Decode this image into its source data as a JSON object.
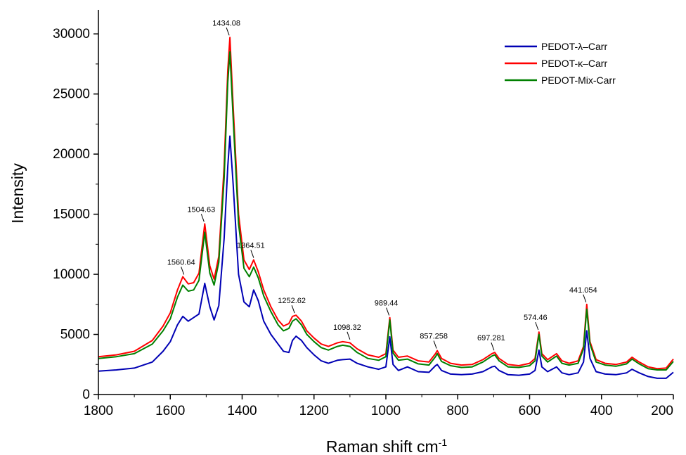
{
  "chart_data": {
    "type": "line",
    "title": "",
    "xlabel": "Raman shift cm",
    "xlabel_sup": "-1",
    "ylabel": "Intensity",
    "xlim": [
      1800,
      200
    ],
    "ylim": [
      0,
      32000
    ],
    "x_ticks": [
      1800,
      1600,
      1400,
      1200,
      1000,
      800,
      600,
      400,
      200
    ],
    "y_ticks": [
      0,
      5000,
      10000,
      15000,
      20000,
      25000,
      30000
    ],
    "grid": false,
    "legend_position": "top-right",
    "series": [
      {
        "name": "PEDOT-λ–Carr",
        "color": "#0000b4",
        "points": [
          [
            1800,
            1950
          ],
          [
            1750,
            2050
          ],
          [
            1700,
            2200
          ],
          [
            1650,
            2700
          ],
          [
            1620,
            3600
          ],
          [
            1600,
            4400
          ],
          [
            1580,
            5800
          ],
          [
            1565,
            6500
          ],
          [
            1550,
            6100
          ],
          [
            1535,
            6400
          ],
          [
            1520,
            6700
          ],
          [
            1504,
            9250
          ],
          [
            1490,
            7300
          ],
          [
            1478,
            6200
          ],
          [
            1465,
            7400
          ],
          [
            1450,
            13000
          ],
          [
            1440,
            19000
          ],
          [
            1434,
            21500
          ],
          [
            1425,
            17500
          ],
          [
            1410,
            10000
          ],
          [
            1395,
            7700
          ],
          [
            1380,
            7300
          ],
          [
            1368,
            8700
          ],
          [
            1355,
            7800
          ],
          [
            1340,
            6100
          ],
          [
            1320,
            5000
          ],
          [
            1300,
            4200
          ],
          [
            1285,
            3600
          ],
          [
            1270,
            3500
          ],
          [
            1260,
            4500
          ],
          [
            1250,
            4850
          ],
          [
            1235,
            4500
          ],
          [
            1220,
            3900
          ],
          [
            1200,
            3300
          ],
          [
            1180,
            2800
          ],
          [
            1160,
            2600
          ],
          [
            1135,
            2850
          ],
          [
            1120,
            2900
          ],
          [
            1100,
            2950
          ],
          [
            1080,
            2600
          ],
          [
            1050,
            2300
          ],
          [
            1020,
            2100
          ],
          [
            1000,
            2300
          ],
          [
            989,
            4800
          ],
          [
            980,
            2500
          ],
          [
            965,
            2000
          ],
          [
            940,
            2300
          ],
          [
            910,
            1900
          ],
          [
            880,
            1850
          ],
          [
            862,
            2400
          ],
          [
            857,
            2500
          ],
          [
            845,
            2000
          ],
          [
            820,
            1700
          ],
          [
            790,
            1650
          ],
          [
            760,
            1700
          ],
          [
            730,
            1900
          ],
          [
            705,
            2300
          ],
          [
            697,
            2350
          ],
          [
            685,
            2000
          ],
          [
            660,
            1650
          ],
          [
            630,
            1600
          ],
          [
            600,
            1700
          ],
          [
            585,
            2000
          ],
          [
            574,
            3700
          ],
          [
            566,
            2300
          ],
          [
            550,
            1900
          ],
          [
            525,
            2300
          ],
          [
            510,
            1800
          ],
          [
            490,
            1650
          ],
          [
            465,
            1800
          ],
          [
            450,
            2700
          ],
          [
            441,
            5300
          ],
          [
            432,
            3000
          ],
          [
            415,
            1900
          ],
          [
            390,
            1700
          ],
          [
            360,
            1650
          ],
          [
            330,
            1800
          ],
          [
            315,
            2100
          ],
          [
            295,
            1800
          ],
          [
            270,
            1500
          ],
          [
            245,
            1350
          ],
          [
            220,
            1350
          ],
          [
            200,
            1850
          ]
        ]
      },
      {
        "name": "PEDOT-κ–Carr",
        "color": "#ff0000",
        "points": [
          [
            1800,
            3150
          ],
          [
            1750,
            3300
          ],
          [
            1700,
            3600
          ],
          [
            1650,
            4500
          ],
          [
            1620,
            5700
          ],
          [
            1600,
            6800
          ],
          [
            1580,
            8700
          ],
          [
            1565,
            9800
          ],
          [
            1550,
            9200
          ],
          [
            1535,
            9300
          ],
          [
            1520,
            10100
          ],
          [
            1504,
            14200
          ],
          [
            1490,
            10700
          ],
          [
            1478,
            9600
          ],
          [
            1465,
            11500
          ],
          [
            1450,
            19000
          ],
          [
            1440,
            27000
          ],
          [
            1434,
            29700
          ],
          [
            1425,
            24000
          ],
          [
            1410,
            15000
          ],
          [
            1395,
            11200
          ],
          [
            1380,
            10400
          ],
          [
            1368,
            11200
          ],
          [
            1355,
            10200
          ],
          [
            1340,
            8700
          ],
          [
            1320,
            7300
          ],
          [
            1300,
            6200
          ],
          [
            1285,
            5700
          ],
          [
            1270,
            5900
          ],
          [
            1260,
            6500
          ],
          [
            1250,
            6600
          ],
          [
            1235,
            6100
          ],
          [
            1220,
            5300
          ],
          [
            1200,
            4700
          ],
          [
            1180,
            4200
          ],
          [
            1160,
            4000
          ],
          [
            1135,
            4300
          ],
          [
            1120,
            4400
          ],
          [
            1100,
            4300
          ],
          [
            1080,
            3800
          ],
          [
            1050,
            3300
          ],
          [
            1020,
            3100
          ],
          [
            1000,
            3400
          ],
          [
            989,
            6400
          ],
          [
            980,
            3700
          ],
          [
            965,
            3100
          ],
          [
            940,
            3200
          ],
          [
            910,
            2800
          ],
          [
            880,
            2700
          ],
          [
            862,
            3400
          ],
          [
            857,
            3650
          ],
          [
            845,
            3000
          ],
          [
            820,
            2600
          ],
          [
            790,
            2450
          ],
          [
            760,
            2500
          ],
          [
            730,
            2900
          ],
          [
            705,
            3400
          ],
          [
            697,
            3500
          ],
          [
            685,
            3000
          ],
          [
            660,
            2500
          ],
          [
            630,
            2400
          ],
          [
            600,
            2600
          ],
          [
            585,
            3000
          ],
          [
            574,
            5200
          ],
          [
            566,
            3400
          ],
          [
            550,
            2900
          ],
          [
            525,
            3400
          ],
          [
            510,
            2800
          ],
          [
            490,
            2600
          ],
          [
            465,
            2800
          ],
          [
            450,
            4000
          ],
          [
            441,
            7500
          ],
          [
            432,
            4400
          ],
          [
            415,
            2900
          ],
          [
            390,
            2600
          ],
          [
            360,
            2500
          ],
          [
            330,
            2700
          ],
          [
            315,
            3100
          ],
          [
            295,
            2700
          ],
          [
            270,
            2300
          ],
          [
            245,
            2150
          ],
          [
            220,
            2200
          ],
          [
            200,
            2950
          ]
        ]
      },
      {
        "name": "PEDOT-Mix-Carr",
        "color": "#008000",
        "points": [
          [
            1800,
            3000
          ],
          [
            1750,
            3150
          ],
          [
            1700,
            3400
          ],
          [
            1650,
            4200
          ],
          [
            1620,
            5300
          ],
          [
            1600,
            6300
          ],
          [
            1580,
            8100
          ],
          [
            1565,
            9100
          ],
          [
            1550,
            8600
          ],
          [
            1535,
            8700
          ],
          [
            1520,
            9500
          ],
          [
            1504,
            13500
          ],
          [
            1490,
            10100
          ],
          [
            1478,
            9100
          ],
          [
            1465,
            11000
          ],
          [
            1450,
            18000
          ],
          [
            1440,
            26000
          ],
          [
            1434,
            28500
          ],
          [
            1425,
            23000
          ],
          [
            1410,
            14200
          ],
          [
            1395,
            10500
          ],
          [
            1380,
            9800
          ],
          [
            1368,
            10600
          ],
          [
            1355,
            9700
          ],
          [
            1340,
            8200
          ],
          [
            1320,
            6900
          ],
          [
            1300,
            5800
          ],
          [
            1285,
            5300
          ],
          [
            1270,
            5500
          ],
          [
            1260,
            6100
          ],
          [
            1250,
            6300
          ],
          [
            1235,
            5800
          ],
          [
            1220,
            5000
          ],
          [
            1200,
            4400
          ],
          [
            1180,
            3900
          ],
          [
            1160,
            3700
          ],
          [
            1135,
            4000
          ],
          [
            1120,
            4100
          ],
          [
            1100,
            4000
          ],
          [
            1080,
            3500
          ],
          [
            1050,
            3000
          ],
          [
            1020,
            2850
          ],
          [
            1000,
            3150
          ],
          [
            989,
            6200
          ],
          [
            980,
            3450
          ],
          [
            965,
            2850
          ],
          [
            940,
            2950
          ],
          [
            910,
            2550
          ],
          [
            880,
            2450
          ],
          [
            862,
            3150
          ],
          [
            857,
            3400
          ],
          [
            845,
            2750
          ],
          [
            820,
            2400
          ],
          [
            790,
            2250
          ],
          [
            760,
            2300
          ],
          [
            730,
            2700
          ],
          [
            705,
            3200
          ],
          [
            697,
            3300
          ],
          [
            685,
            2800
          ],
          [
            660,
            2300
          ],
          [
            630,
            2250
          ],
          [
            600,
            2400
          ],
          [
            585,
            2800
          ],
          [
            574,
            5000
          ],
          [
            566,
            3200
          ],
          [
            550,
            2700
          ],
          [
            525,
            3200
          ],
          [
            510,
            2600
          ],
          [
            490,
            2450
          ],
          [
            465,
            2600
          ],
          [
            450,
            3800
          ],
          [
            441,
            7100
          ],
          [
            432,
            4200
          ],
          [
            415,
            2700
          ],
          [
            390,
            2450
          ],
          [
            360,
            2350
          ],
          [
            330,
            2550
          ],
          [
            315,
            2950
          ],
          [
            295,
            2550
          ],
          [
            270,
            2150
          ],
          [
            245,
            2050
          ],
          [
            220,
            2050
          ],
          [
            200,
            2750
          ]
        ]
      }
    ],
    "annotations": [
      {
        "text": "1434.08",
        "x": 1434,
        "y": 29700
      },
      {
        "text": "1504.63",
        "x": 1504,
        "y": 14200
      },
      {
        "text": "1560.64",
        "x": 1560,
        "y": 9800
      },
      {
        "text": "1364.51",
        "x": 1366,
        "y": 11200
      },
      {
        "text": "1252.62",
        "x": 1252,
        "y": 6600
      },
      {
        "text": "1098.32",
        "x": 1098,
        "y": 4400
      },
      {
        "text": "989.44",
        "x": 989,
        "y": 6400
      },
      {
        "text": "857.258",
        "x": 857,
        "y": 3650
      },
      {
        "text": "697.281",
        "x": 697,
        "y": 3500
      },
      {
        "text": "574.46",
        "x": 574,
        "y": 5200
      },
      {
        "text": "441.054",
        "x": 441,
        "y": 7500
      }
    ]
  }
}
